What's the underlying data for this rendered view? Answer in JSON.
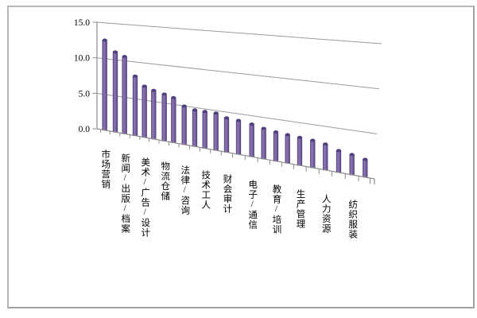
{
  "window": {
    "background_color": "#ffffff",
    "border_color": "#b6b6b6"
  },
  "chart_data": {
    "type": "bar",
    "style": "3d-perspective-column",
    "title": "",
    "xlabel": "",
    "ylabel": "",
    "categories": [
      "市场营销",
      "新闻/出版/档案",
      "美术/广告/设计",
      "物流仓储",
      "法律/咨询",
      "技术工人",
      "财会审计",
      "电子/通信",
      "教育/培训",
      "生产管理",
      "人力资源",
      "纺织服装"
    ],
    "label_interval": 2,
    "values": [
      12.6,
      11.1,
      10.6,
      8.1,
      6.9,
      6.5,
      6.2,
      5.9,
      5.0,
      4.7,
      4.7,
      4.7,
      4.3,
      4.2,
      4.0,
      3.7,
      3.5,
      3.4,
      3.3,
      3.2,
      3.0,
      2.5,
      2.3,
      2.0
    ],
    "ylim": [
      0,
      15
    ],
    "y_ticks": [
      0,
      5,
      10,
      15
    ],
    "y_tick_labels": [
      "0.0",
      "5.0",
      "10.0",
      "15.0"
    ],
    "grid": true,
    "legend": false,
    "bar_color": "#7C66A6",
    "bar_color_light": "#8E79B4",
    "bar_color_dark": "#5A4783",
    "bar_edge_color": "#4F3F78",
    "bar_cap_color": "#514080",
    "grid_color": "#9B9B9B",
    "axis_color": "#8C8C8C",
    "text_color": "#000000"
  }
}
